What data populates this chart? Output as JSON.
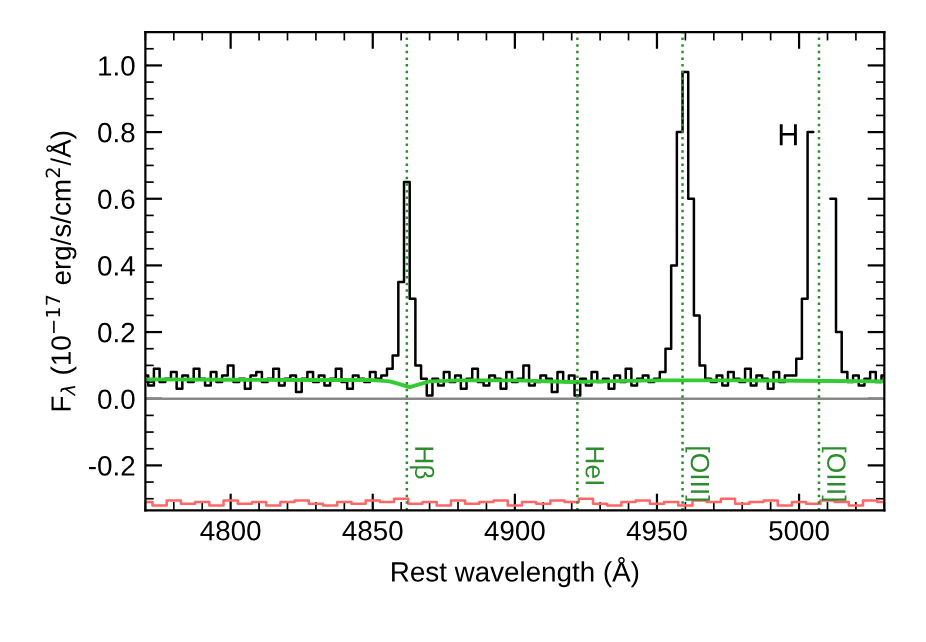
{
  "chart_data": {
    "type": "step",
    "xlabel": "Rest wavelength (Å)",
    "ylabel": "F$_{λ}$ (10$^{−17}$ erg/s/cm$^{2}$/Å)",
    "xlim": [
      4770,
      5030
    ],
    "ylim": [
      -0.335,
      1.1
    ],
    "xticks": [
      4800,
      4850,
      4900,
      4950,
      5000
    ],
    "yticks": [
      {
        "value": -0.2,
        "label": "-0.2"
      },
      {
        "value": 0.0,
        "label": "0.0"
      },
      {
        "value": 0.2,
        "label": "0.2"
      },
      {
        "value": 0.4,
        "label": "0.4"
      },
      {
        "value": 0.6,
        "label": "0.6"
      },
      {
        "value": 0.8,
        "label": "0.8"
      },
      {
        "value": 1.0,
        "label": "1.0"
      }
    ],
    "grid": false,
    "legend": false,
    "series": [
      {
        "color": "#000000",
        "x": [
          4770,
          4772,
          4774,
          4776,
          4778,
          4780,
          4782,
          4784,
          4786,
          4788,
          4790,
          4792,
          4794,
          4796,
          4798,
          4800,
          4802,
          4804,
          4806,
          4808,
          4810,
          4812,
          4814,
          4816,
          4818,
          4820,
          4822,
          4824,
          4826,
          4828,
          4830,
          4832,
          4834,
          4836,
          4838,
          4840,
          4842,
          4844,
          4846,
          4848,
          4850,
          4852,
          4854,
          4856,
          4858,
          4860,
          4862,
          4864,
          4866,
          4868,
          4870,
          4872,
          4874,
          4876,
          4878,
          4880,
          4882,
          4884,
          4886,
          4888,
          4890,
          4892,
          4894,
          4896,
          4898,
          4900,
          4902,
          4904,
          4906,
          4908,
          4910,
          4912,
          4914,
          4916,
          4918,
          4920,
          4922,
          4924,
          4926,
          4928,
          4930,
          4932,
          4934,
          4936,
          4938,
          4940,
          4942,
          4944,
          4946,
          4948,
          4950,
          4952,
          4954,
          4956,
          4958,
          4960,
          4962,
          4964,
          4966,
          4968,
          4970,
          4972,
          4974,
          4976,
          4978,
          4980,
          4982,
          4984,
          4986,
          4988,
          4990,
          4992,
          4994,
          4996,
          4998,
          5000,
          5002,
          5004,
          5006,
          5008,
          5010,
          5012,
          5014,
          5016,
          5018,
          5020,
          5022,
          5024,
          5026,
          5028,
          5030
        ],
        "values": [
          0.07,
          0.04,
          0.09,
          0.05,
          0.06,
          0.08,
          0.03,
          0.07,
          0.05,
          0.09,
          0.06,
          0.04,
          0.08,
          0.05,
          0.07,
          0.1,
          0.05,
          0.06,
          0.03,
          0.07,
          0.08,
          0.05,
          0.06,
          0.09,
          0.04,
          0.06,
          0.07,
          0.02,
          0.06,
          0.08,
          0.05,
          0.07,
          0.04,
          0.06,
          0.09,
          0.05,
          0.03,
          0.07,
          0.06,
          0.05,
          0.08,
          0.06,
          0.07,
          0.09,
          0.13,
          0.35,
          0.65,
          0.3,
          0.1,
          0.06,
          0.01,
          0.06,
          0.04,
          0.08,
          0.05,
          0.07,
          0.03,
          0.06,
          0.09,
          0.05,
          0.04,
          0.07,
          0.06,
          0.03,
          0.08,
          0.05,
          0.06,
          0.1,
          0.04,
          0.05,
          0.07,
          0.06,
          0.02,
          0.08,
          0.05,
          0.07,
          0.01,
          0.06,
          0.04,
          0.08,
          0.05,
          0.06,
          0.03,
          0.07,
          0.05,
          0.09,
          0.04,
          0.06,
          0.07,
          0.05,
          0.06,
          0.08,
          0.15,
          0.4,
          0.8,
          0.98,
          0.6,
          0.25,
          0.1,
          0.06,
          0.05,
          0.07,
          0.04,
          0.08,
          0.06,
          0.05,
          0.09,
          0.04,
          0.07,
          0.06,
          0.03,
          0.08,
          0.05,
          0.07,
          0.07,
          0.12,
          0.3,
          0.8,
          null,
          null,
          null,
          0.6,
          0.2,
          0.08,
          0.05,
          0.07,
          0.04,
          0.06,
          0.08,
          0.05,
          0.07
        ]
      },
      {
        "type": "line",
        "color": "#33cc33",
        "x": [
          4770,
          4800,
          4830,
          4850,
          4856,
          4860,
          4863,
          4866,
          4870,
          4880,
          4900,
          4920,
          4930,
          4950,
          4980,
          5000,
          5030
        ],
        "values": [
          0.058,
          0.057,
          0.056,
          0.056,
          0.052,
          0.042,
          0.035,
          0.042,
          0.052,
          0.055,
          0.055,
          0.05,
          0.052,
          0.055,
          0.055,
          0.054,
          0.052
        ]
      },
      {
        "type": "step",
        "color": "#ff6666",
        "x": [
          4770,
          4775,
          4780,
          4785,
          4790,
          4795,
          4800,
          4805,
          4810,
          4815,
          4820,
          4825,
          4830,
          4835,
          4840,
          4845,
          4850,
          4855,
          4860,
          4865,
          4870,
          4875,
          4880,
          4885,
          4890,
          4895,
          4900,
          4905,
          4910,
          4915,
          4920,
          4925,
          4930,
          4935,
          4940,
          4945,
          4950,
          4955,
          4960,
          4965,
          4970,
          4975,
          4980,
          4985,
          4990,
          4995,
          5000,
          5005,
          5010,
          5015,
          5020,
          5025,
          5030
        ],
        "values": [
          -0.31,
          -0.32,
          -0.305,
          -0.315,
          -0.31,
          -0.32,
          -0.305,
          -0.315,
          -0.31,
          -0.32,
          -0.31,
          -0.305,
          -0.315,
          -0.32,
          -0.31,
          -0.315,
          -0.305,
          -0.31,
          -0.3,
          -0.315,
          -0.31,
          -0.32,
          -0.305,
          -0.315,
          -0.31,
          -0.305,
          -0.32,
          -0.31,
          -0.315,
          -0.305,
          -0.31,
          -0.3,
          -0.315,
          -0.32,
          -0.31,
          -0.305,
          -0.315,
          -0.31,
          -0.32,
          -0.305,
          -0.31,
          -0.3,
          -0.315,
          -0.31,
          -0.305,
          -0.32,
          -0.31,
          -0.315,
          -0.305,
          -0.31,
          -0.32,
          -0.305,
          -0.31
        ]
      }
    ],
    "ref_lines": [
      {
        "axis": "y",
        "value": 0.0,
        "color": "#888888",
        "line_style": "solid"
      },
      {
        "axis": "x",
        "value": 4862,
        "label": "Hβ",
        "color": "#2e8b2e",
        "line_style": "dotted"
      },
      {
        "axis": "x",
        "value": 4922,
        "label": "HeI",
        "color": "#2e8b2e",
        "line_style": "dotted"
      },
      {
        "axis": "x",
        "value": 4959,
        "label": "[OIII]",
        "color": "#2e8b2e",
        "line_style": "dotted"
      },
      {
        "axis": "x",
        "value": 5007,
        "label": "[OIII]",
        "color": "#2e8b2e",
        "line_style": "dotted"
      }
    ],
    "annotations": [
      "H"
    ]
  }
}
